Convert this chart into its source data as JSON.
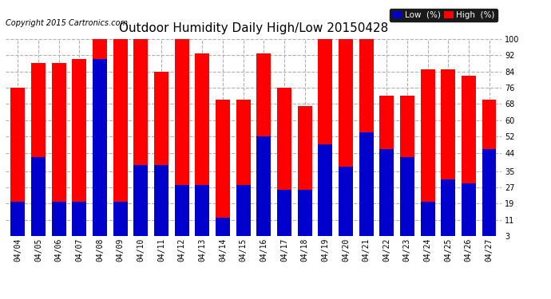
{
  "title": "Outdoor Humidity Daily High/Low 20150428",
  "copyright": "Copyright 2015 Cartronics.com",
  "legend_low": "Low  (%)",
  "legend_high": "High  (%)",
  "dates": [
    "04/04",
    "04/05",
    "04/06",
    "04/07",
    "04/08",
    "04/09",
    "04/10",
    "04/11",
    "04/12",
    "04/13",
    "04/14",
    "04/15",
    "04/16",
    "04/17",
    "04/18",
    "04/19",
    "04/20",
    "04/21",
    "04/22",
    "04/23",
    "04/24",
    "04/25",
    "04/26",
    "04/27"
  ],
  "high": [
    76,
    88,
    88,
    90,
    100,
    100,
    100,
    84,
    100,
    93,
    70,
    70,
    93,
    76,
    67,
    100,
    100,
    100,
    72,
    72,
    85,
    85,
    82,
    70
  ],
  "low": [
    20,
    42,
    20,
    20,
    90,
    20,
    38,
    38,
    28,
    28,
    12,
    28,
    52,
    26,
    26,
    48,
    37,
    54,
    46,
    42,
    20,
    31,
    29,
    46
  ],
  "bg_color": "#ffffff",
  "high_color": "#ff0000",
  "low_color": "#0000cc",
  "grid_color": "#b0b0b0",
  "ylim_min": 3,
  "ylim_max": 100,
  "yticks": [
    3,
    11,
    19,
    27,
    35,
    44,
    52,
    60,
    68,
    76,
    84,
    92,
    100
  ],
  "bar_width": 0.7,
  "title_fontsize": 11,
  "tick_fontsize": 7,
  "legend_fontsize": 7.5,
  "copyright_fontsize": 7
}
